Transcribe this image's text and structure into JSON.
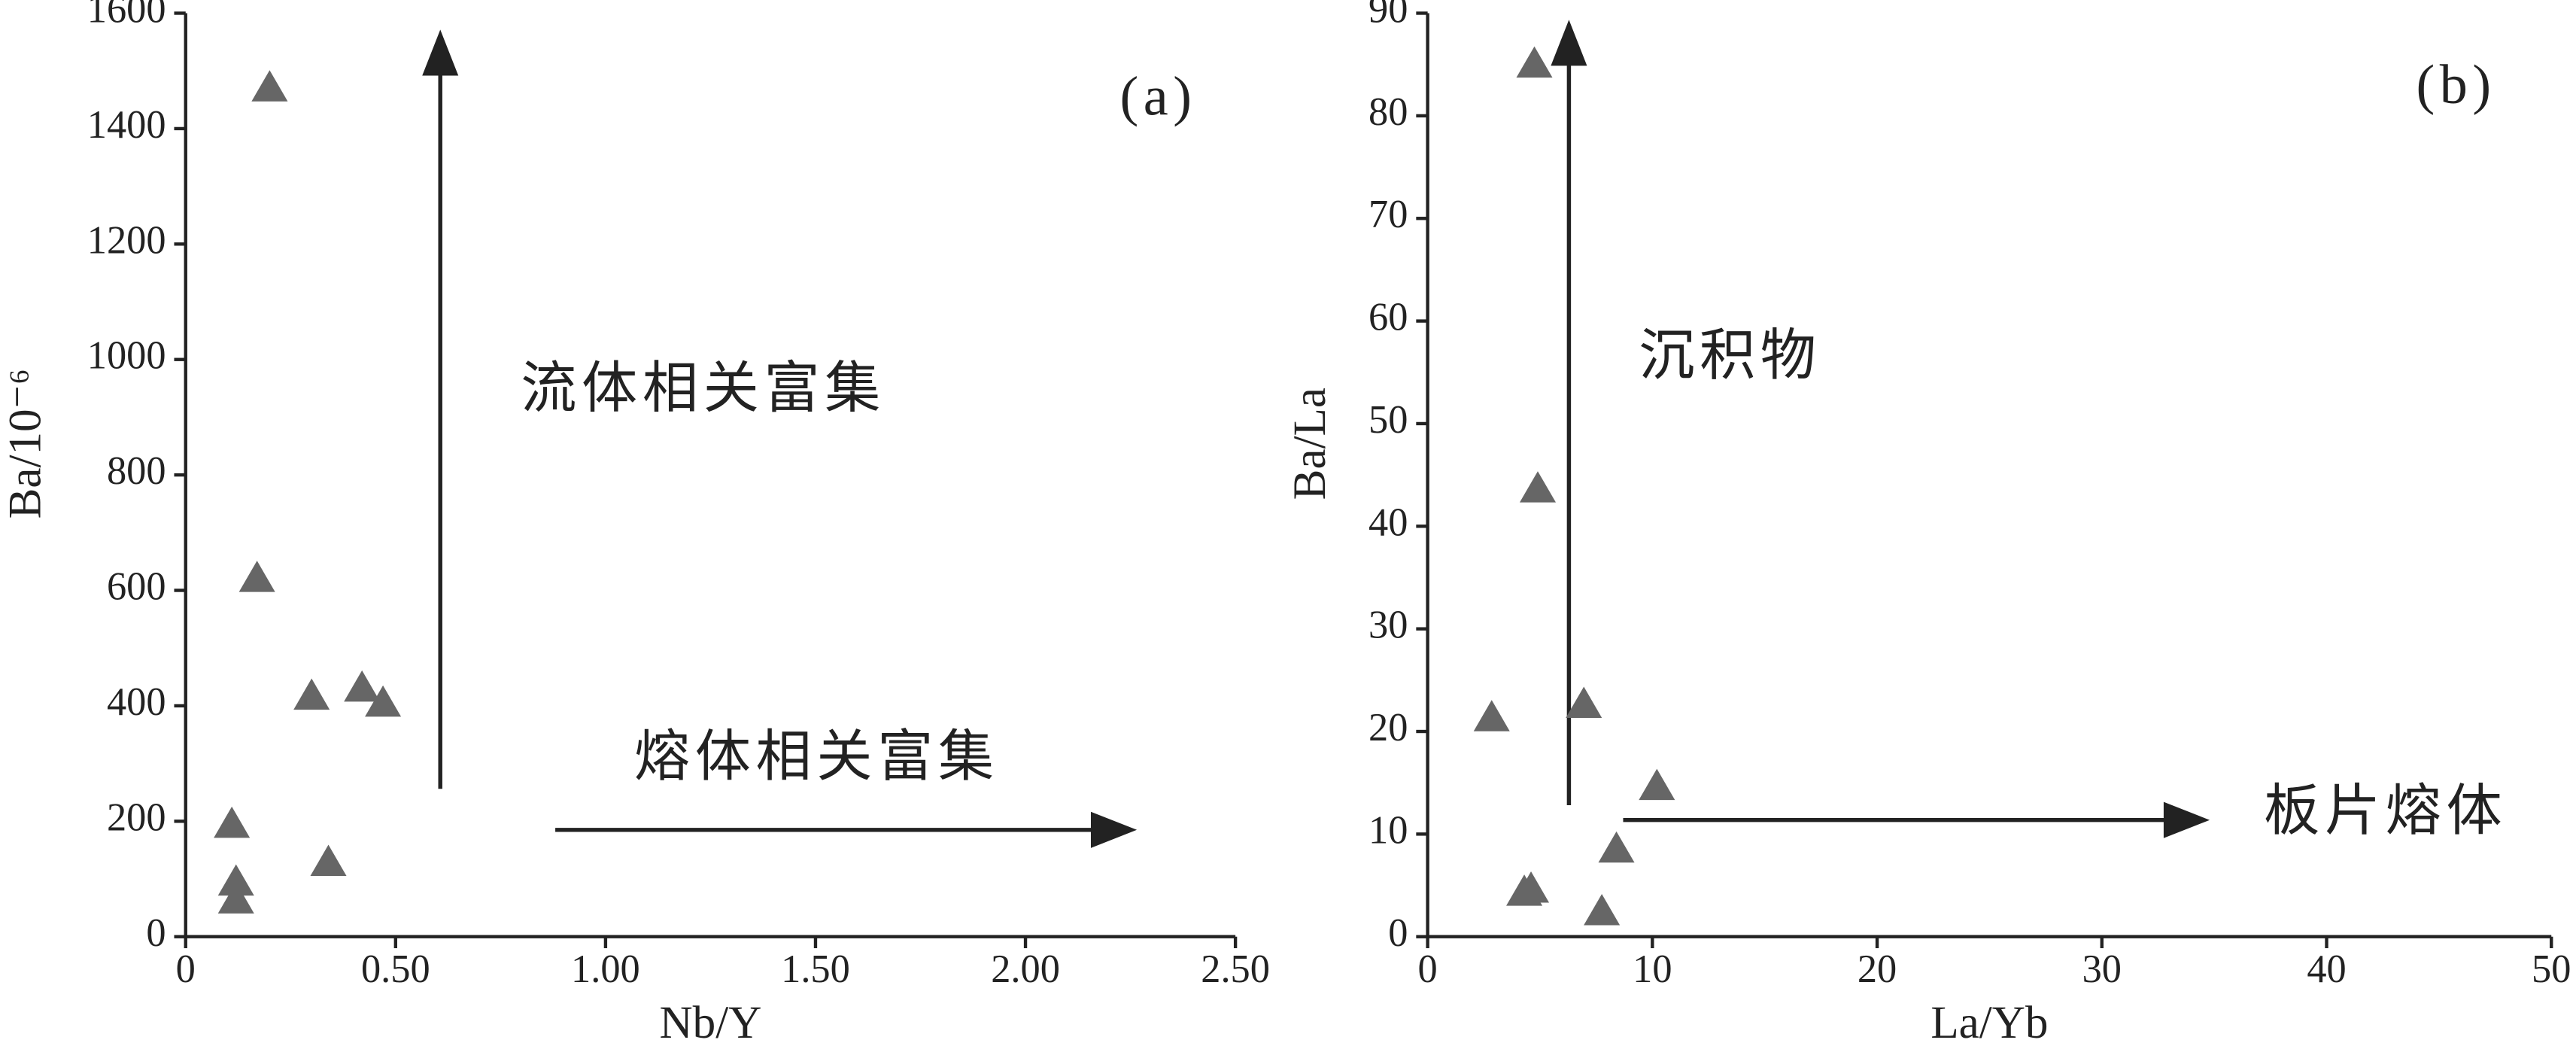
{
  "chart_data": [
    {
      "type": "scatter",
      "label": "(a)",
      "xlabel": "Nb/Y",
      "ylabel": "Ba/10⁻⁶",
      "annotations": [
        "流体相关富集",
        "熔体相关富集"
      ],
      "color": "#666666",
      "x": [
        0.2,
        0.17,
        0.3,
        0.42,
        0.47,
        0.11,
        0.12,
        0.12,
        0.34
      ],
      "values": [
        1470,
        620,
        416,
        430,
        404,
        194,
        94,
        63,
        128
      ],
      "xlim": [
        0,
        2.5
      ],
      "ylim": [
        0,
        1600
      ],
      "xticks": [
        0,
        {
          "value": 0.5,
          "label": "0.50"
        },
        {
          "value": 1,
          "label": "1.00"
        },
        {
          "value": 1.5,
          "label": "1.50"
        },
        {
          "value": 2,
          "label": "2.00"
        },
        {
          "value": 2.5,
          "label": "2.50"
        }
      ],
      "yticks": [
        0,
        200,
        400,
        600,
        800,
        1000,
        1200,
        1400,
        1600
      ]
    },
    {
      "type": "scatter",
      "label": "(b)",
      "xlabel": "La/Yb",
      "ylabel": "Ba/La",
      "annotations": [
        "沉积物",
        "板片熔体"
      ],
      "color": "#666666",
      "x": [
        4.75,
        4.9,
        2.85,
        6.95,
        10.2,
        8.4,
        4.3,
        4.6,
        7.75
      ],
      "values": [
        85,
        43.6,
        21.3,
        22.6,
        14.6,
        8.5,
        4.3,
        4.6,
        2.4
      ],
      "xlim": [
        0,
        50
      ],
      "ylim": [
        0,
        90
      ],
      "xticks": [
        0,
        10,
        20,
        30,
        40,
        50
      ],
      "yticks": [
        0,
        10,
        20,
        30,
        40,
        50,
        60,
        70,
        80,
        90
      ]
    }
  ]
}
